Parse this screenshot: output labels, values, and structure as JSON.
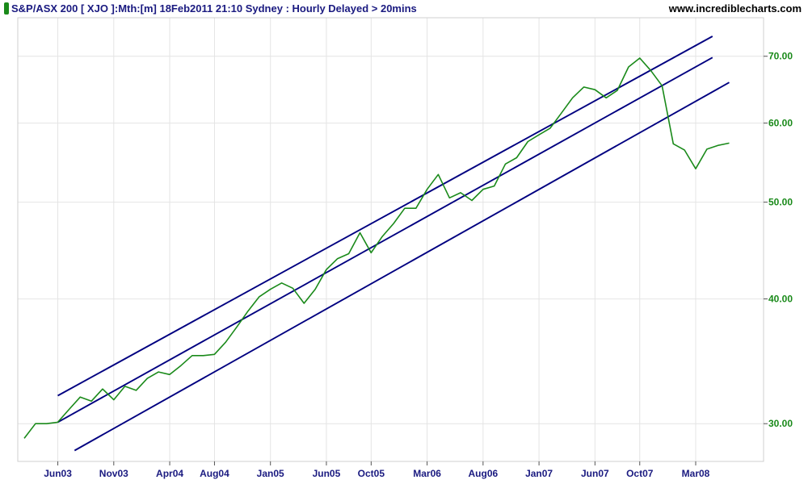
{
  "header": {
    "title": "S&P/ASX 200 [ XJO ]:Mth:[m]  18Feb2011 21:10 Sydney : Hourly Delayed > 20mins",
    "site": "www.incrediblecharts.com"
  },
  "colors": {
    "price": "#1a8a1a",
    "channel": "#000080",
    "axis_text_x": "#1a1a80",
    "axis_text_y": "#1a8a1a",
    "grid": "#e4e4e4",
    "frame": "#cfcfcf",
    "header_text": "#1a1a80"
  },
  "chart_data": {
    "type": "line",
    "title": "S&P/ASX 200 [ XJO ]:Mth:[m]  18Feb2011 21:10 Sydney : Hourly Delayed > 20mins",
    "xlabel": "",
    "ylabel": "",
    "y_scale": "log",
    "ylim": [
      27.5,
      76.5
    ],
    "grid": true,
    "x_tick_labels": [
      {
        "label": "Jun03",
        "index": 3
      },
      {
        "label": "Nov03",
        "index": 8
      },
      {
        "label": "Apr04",
        "index": 13
      },
      {
        "label": "Aug04",
        "index": 17
      },
      {
        "label": "Jan05",
        "index": 22
      },
      {
        "label": "Jun05",
        "index": 27
      },
      {
        "label": "Oct05",
        "index": 31
      },
      {
        "label": "Mar06",
        "index": 36
      },
      {
        "label": "Aug06",
        "index": 41
      },
      {
        "label": "Jan07",
        "index": 46
      },
      {
        "label": "Jun07",
        "index": 51
      },
      {
        "label": "Oct07",
        "index": 55
      },
      {
        "label": "Mar08",
        "index": 60
      }
    ],
    "y_ticks": [
      {
        "label": "30.00",
        "value": 30
      },
      {
        "label": "40.00",
        "value": 40
      },
      {
        "label": "50.00",
        "value": 50
      },
      {
        "label": "60.00",
        "value": 60
      },
      {
        "label": "70.00",
        "value": 70
      }
    ],
    "series": [
      {
        "type": "line",
        "color": "#1a8a1a",
        "x": [
          0,
          1,
          2,
          3,
          4,
          5,
          6,
          7,
          8,
          9,
          10,
          11,
          12,
          13,
          14,
          15,
          16,
          17,
          18,
          19,
          20,
          21,
          22,
          23,
          24,
          25,
          26,
          27,
          28,
          29,
          30,
          31,
          32,
          33,
          34,
          35,
          36,
          37,
          38,
          39,
          40,
          41,
          42,
          43,
          44,
          45,
          46,
          47,
          48,
          49,
          50,
          51,
          52,
          53,
          54,
          55,
          56,
          57,
          58,
          59,
          60,
          61,
          62,
          63
        ],
        "values": [
          29.0,
          30.0,
          30.0,
          30.1,
          31.0,
          31.9,
          31.6,
          32.5,
          31.7,
          32.7,
          32.4,
          33.3,
          33.8,
          33.6,
          34.3,
          35.1,
          35.1,
          35.2,
          36.2,
          37.5,
          38.9,
          40.2,
          40.9,
          41.5,
          41.0,
          39.6,
          40.9,
          42.8,
          43.9,
          44.4,
          46.6,
          44.5,
          46.2,
          47.6,
          49.3,
          49.3,
          51.5,
          53.3,
          50.5,
          51.1,
          50.2,
          51.5,
          51.9,
          54.6,
          55.4,
          57.5,
          58.4,
          59.3,
          61.4,
          63.6,
          65.2,
          64.8,
          63.6,
          64.7,
          68.3,
          69.7,
          67.7,
          65.4,
          57.2,
          56.4,
          54.0,
          56.5,
          57.0,
          57.3
        ]
      },
      {
        "type": "line",
        "color": "#000080",
        "x": [
          3,
          61.5
        ],
        "values": [
          32.0,
          73.3
        ]
      },
      {
        "type": "line",
        "color": "#000080",
        "x": [
          3,
          61.5
        ],
        "values": [
          30.1,
          69.8
        ]
      },
      {
        "type": "line",
        "color": "#000080",
        "x": [
          4.5,
          63
        ],
        "values": [
          28.2,
          65.9
        ]
      }
    ]
  }
}
